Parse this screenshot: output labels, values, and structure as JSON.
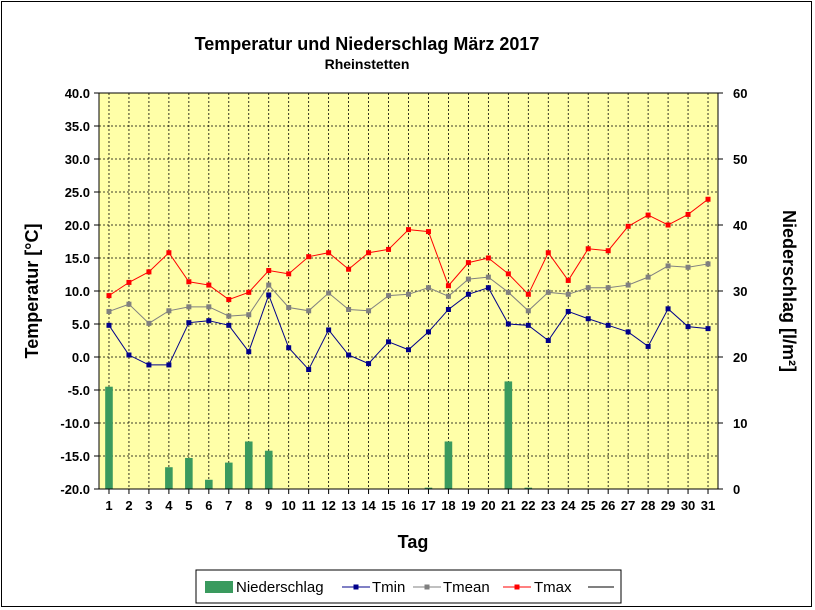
{
  "chart_data": {
    "type": "bar+line",
    "title": "Temperatur und Niederschlag  März 2017",
    "subtitle": "Rheinstetten",
    "xlabel": "Tag",
    "ylabel_left": "Temperatur [°C]",
    "ylabel_right": "Niederschlag [l/m²]",
    "ylim_left": [
      -20,
      40
    ],
    "ylim_right": [
      0,
      60
    ],
    "y_left_ticks": [
      "40.0",
      "35.0",
      "30.0",
      "25.0",
      "20.0",
      "15.0",
      "10.0",
      "5.0",
      "0.0",
      "-5.0",
      "-10.0",
      "-15.0",
      "-20.0"
    ],
    "y_right_ticks": [
      "60",
      "50",
      "40",
      "30",
      "20",
      "10",
      "0"
    ],
    "grid": true,
    "plot_background": "#ffffa8",
    "days": [
      1,
      2,
      3,
      4,
      5,
      6,
      7,
      8,
      9,
      10,
      11,
      12,
      13,
      14,
      15,
      16,
      17,
      18,
      19,
      20,
      21,
      22,
      23,
      24,
      25,
      26,
      27,
      28,
      29,
      30,
      31
    ],
    "series": [
      {
        "name": "Niederschlag",
        "type": "bar",
        "axis": "right",
        "color": "#3a9a5e",
        "values": [
          15.5,
          0,
          0,
          3.3,
          4.7,
          1.4,
          4.0,
          7.2,
          5.8,
          0,
          0,
          0,
          0,
          0,
          0,
          0,
          0.2,
          7.2,
          0,
          0,
          16.3,
          0.2,
          0,
          0,
          0,
          0,
          0,
          0,
          0,
          0,
          0
        ]
      },
      {
        "name": "Tmin",
        "type": "line",
        "axis": "left",
        "color": "#00008b",
        "values": [
          4.8,
          0.3,
          -1.2,
          -1.2,
          5.2,
          5.5,
          4.8,
          0.8,
          9.4,
          1.4,
          -1.9,
          4.1,
          0.3,
          -1.0,
          2.3,
          1.1,
          3.8,
          7.2,
          9.5,
          10.5,
          5.0,
          4.8,
          2.5,
          6.9,
          5.8,
          4.8,
          3.8,
          1.6,
          7.3,
          4.6,
          4.3
        ]
      },
      {
        "name": "Tmean",
        "type": "line",
        "axis": "left",
        "color": "#808080",
        "values": [
          6.9,
          8.0,
          5.1,
          7.0,
          7.6,
          7.6,
          6.2,
          6.4,
          10.9,
          7.5,
          7.0,
          9.7,
          7.2,
          7.0,
          9.3,
          9.5,
          10.5,
          9.2,
          11.8,
          12.1,
          9.8,
          7.0,
          9.8,
          9.5,
          10.5,
          10.5,
          10.9,
          12.1,
          13.8,
          13.6,
          14.1
        ]
      },
      {
        "name": "Tmax",
        "type": "line",
        "axis": "left",
        "color": "#ff0000",
        "values": [
          9.3,
          11.3,
          12.9,
          15.8,
          11.4,
          10.9,
          8.7,
          9.8,
          13.1,
          12.6,
          15.2,
          15.8,
          13.3,
          15.8,
          16.3,
          19.3,
          19.0,
          10.8,
          14.3,
          15.0,
          12.6,
          9.5,
          15.8,
          11.6,
          16.4,
          16.1,
          19.8,
          21.5,
          20.0,
          21.6,
          23.9
        ]
      }
    ],
    "legend_position": "bottom"
  }
}
